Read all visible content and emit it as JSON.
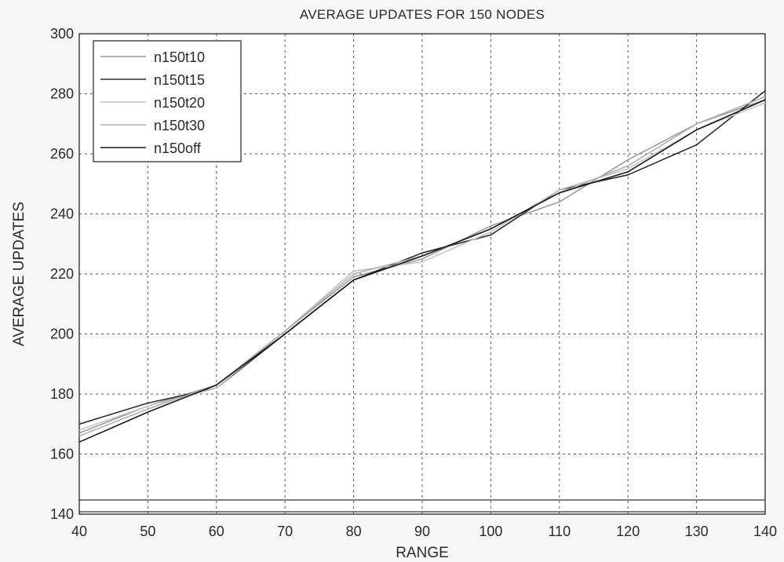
{
  "chart_data": {
    "type": "line",
    "title": "AVERAGE UPDATES FOR 150 NODES",
    "xlabel": "RANGE",
    "ylabel": "AVERAGE UPDATES",
    "xlim": [
      40,
      140
    ],
    "ylim": [
      140,
      300
    ],
    "xticks": [
      40,
      50,
      60,
      70,
      80,
      90,
      100,
      110,
      120,
      130,
      140
    ],
    "yticks": [
      140,
      160,
      180,
      200,
      220,
      240,
      260,
      280,
      300
    ],
    "grid": true,
    "legend_position": "top-left",
    "x": [
      40,
      50,
      60,
      70,
      80,
      90,
      100,
      110,
      120,
      130,
      140
    ],
    "series": [
      {
        "name": "n150t10",
        "color": "#9a9a9a",
        "values": [
          167,
          176,
          183,
          201,
          219,
          225,
          236,
          244,
          258,
          270,
          278
        ]
      },
      {
        "name": "n150t15",
        "color": "#2e2e2e",
        "values": [
          170,
          177,
          182,
          200,
          218,
          227,
          233,
          248,
          253,
          263,
          281
        ]
      },
      {
        "name": "n150t20",
        "color": "#c4c4c4",
        "values": [
          168,
          176,
          182,
          201,
          221,
          224,
          234,
          248,
          255,
          268,
          277
        ]
      },
      {
        "name": "n150t30",
        "color": "#b0b0b0",
        "values": [
          166,
          175,
          183,
          201,
          220,
          226,
          235,
          247,
          256,
          270,
          279
        ]
      },
      {
        "name": "n150off",
        "color": "#1a1a1a",
        "values": [
          164,
          174,
          183,
          200,
          218,
          226,
          235,
          247,
          254,
          268,
          278
        ]
      }
    ]
  }
}
